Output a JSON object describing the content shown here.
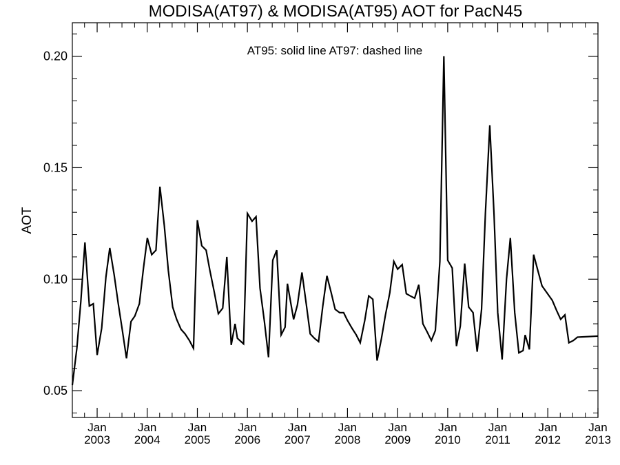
{
  "chart_data": {
    "type": "line",
    "title": "MODISA(AT97) & MODISA(AT95)  AOT for PacN45",
    "annotation": "AT95: solid line   AT97: dashed line",
    "xlabel": "",
    "ylabel": "AOT",
    "xlim": [
      "2002-07-04",
      "2013-01-01"
    ],
    "ylim": [
      0.038,
      0.215
    ],
    "y_ticks": [
      0.05,
      0.1,
      0.15,
      0.2
    ],
    "y_tick_labels": [
      "0.05",
      "0.10",
      "0.15",
      "0.20"
    ],
    "x_ticks": [
      "2003-01-01",
      "2004-01-01",
      "2005-01-01",
      "2006-01-01",
      "2007-01-01",
      "2008-01-01",
      "2009-01-01",
      "2010-01-01",
      "2011-01-01",
      "2012-01-01",
      "2013-01-01"
    ],
    "x_tick_labels": [
      [
        "Jan",
        "2003"
      ],
      [
        "Jan",
        "2004"
      ],
      [
        "Jan",
        "2005"
      ],
      [
        "Jan",
        "2006"
      ],
      [
        "Jan",
        "2007"
      ],
      [
        "Jan",
        "2008"
      ],
      [
        "Jan",
        "2009"
      ],
      [
        "Jan",
        "2010"
      ],
      [
        "Jan",
        "2011"
      ],
      [
        "Jan",
        "2012"
      ],
      [
        "Jan",
        "2013"
      ]
    ],
    "grid": false,
    "line_color": "#000000",
    "series": [
      {
        "line_style": "solid",
        "points": [
          [
            "2002-07-04",
            0.0525
          ],
          [
            "2002-08-06",
            0.069
          ],
          [
            "2002-09-04",
            0.09
          ],
          [
            "2002-10-04",
            0.1165
          ],
          [
            "2002-11-05",
            0.088
          ],
          [
            "2002-12-04",
            0.089
          ],
          [
            "2003-01-01",
            0.066
          ],
          [
            "2003-02-03",
            0.078
          ],
          [
            "2003-03-06",
            0.101
          ],
          [
            "2003-04-03",
            0.114
          ],
          [
            "2003-05-05",
            0.102
          ],
          [
            "2003-06-04",
            0.089
          ],
          [
            "2003-07-04",
            0.077
          ],
          [
            "2003-08-03",
            0.0645
          ],
          [
            "2003-09-05",
            0.081
          ],
          [
            "2003-10-03",
            0.0835
          ],
          [
            "2003-11-05",
            0.089
          ],
          [
            "2003-12-05",
            0.105
          ],
          [
            "2004-01-02",
            0.1185
          ],
          [
            "2004-02-03",
            0.111
          ],
          [
            "2004-03-05",
            0.113
          ],
          [
            "2004-04-03",
            0.1415
          ],
          [
            "2004-05-05",
            0.124
          ],
          [
            "2004-06-03",
            0.104
          ],
          [
            "2004-07-05",
            0.0875
          ],
          [
            "2004-08-03",
            0.082
          ],
          [
            "2004-09-04",
            0.0775
          ],
          [
            "2004-10-03",
            0.0755
          ],
          [
            "2004-11-04",
            0.0725
          ],
          [
            "2004-12-04",
            0.069
          ],
          [
            "2005-01-01",
            0.1265
          ],
          [
            "2005-02-02",
            0.115
          ],
          [
            "2005-03-06",
            0.113
          ],
          [
            "2005-04-02",
            0.104
          ],
          [
            "2005-05-05",
            0.094
          ],
          [
            "2005-06-03",
            0.0845
          ],
          [
            "2005-07-05",
            0.087
          ],
          [
            "2005-08-04",
            0.11
          ],
          [
            "2005-09-05",
            0.0705
          ],
          [
            "2005-10-03",
            0.08
          ],
          [
            "2005-10-20",
            0.0735
          ],
          [
            "2005-12-04",
            0.071
          ],
          [
            "2006-01-01",
            0.1295
          ],
          [
            "2006-02-04",
            0.126
          ],
          [
            "2006-03-05",
            0.128
          ],
          [
            "2006-04-03",
            0.096
          ],
          [
            "2006-05-05",
            0.081
          ],
          [
            "2006-06-04",
            0.065
          ],
          [
            "2006-07-05",
            0.1085
          ],
          [
            "2006-08-03",
            0.113
          ],
          [
            "2006-09-04",
            0.075
          ],
          [
            "2006-10-03",
            0.0785
          ],
          [
            "2006-10-20",
            0.098
          ],
          [
            "2006-12-04",
            0.082
          ],
          [
            "2007-01-01",
            0.0885
          ],
          [
            "2007-02-03",
            0.103
          ],
          [
            "2007-03-06",
            0.089
          ],
          [
            "2007-04-04",
            0.0755
          ],
          [
            "2007-05-05",
            0.0735
          ],
          [
            "2007-06-04",
            0.072
          ],
          [
            "2007-07-05",
            0.088
          ],
          [
            "2007-08-04",
            0.1015
          ],
          [
            "2007-09-04",
            0.094
          ],
          [
            "2007-10-03",
            0.0865
          ],
          [
            "2007-11-05",
            0.085
          ],
          [
            "2007-12-04",
            0.085
          ],
          [
            "2008-01-01",
            0.0815
          ],
          [
            "2008-02-03",
            0.078
          ],
          [
            "2008-03-05",
            0.075
          ],
          [
            "2008-04-03",
            0.0715
          ],
          [
            "2008-05-06",
            0.0815
          ],
          [
            "2008-06-04",
            0.0925
          ],
          [
            "2008-07-04",
            0.091
          ],
          [
            "2008-08-04",
            0.0635
          ],
          [
            "2008-09-05",
            0.0735
          ],
          [
            "2008-10-04",
            0.084
          ],
          [
            "2008-11-05",
            0.094
          ],
          [
            "2008-12-04",
            0.108
          ],
          [
            "2009-01-01",
            0.1045
          ],
          [
            "2009-02-03",
            0.1065
          ],
          [
            "2009-03-05",
            0.0935
          ],
          [
            "2009-04-03",
            0.0925
          ],
          [
            "2009-05-05",
            0.0915
          ],
          [
            "2009-06-04",
            0.0975
          ],
          [
            "2009-07-04",
            0.08
          ],
          [
            "2009-08-03",
            0.0765
          ],
          [
            "2009-09-04",
            0.0725
          ],
          [
            "2009-10-03",
            0.077
          ],
          [
            "2009-11-05",
            0.108
          ],
          [
            "2009-12-04",
            0.2
          ],
          [
            "2010-01-01",
            0.1085
          ],
          [
            "2010-02-03",
            0.105
          ],
          [
            "2010-03-06",
            0.07
          ],
          [
            "2010-04-03",
            0.079
          ],
          [
            "2010-05-05",
            0.107
          ],
          [
            "2010-06-03",
            0.0875
          ],
          [
            "2010-07-05",
            0.085
          ],
          [
            "2010-08-04",
            0.0675
          ],
          [
            "2010-09-05",
            0.0865
          ],
          [
            "2010-10-03",
            0.1295
          ],
          [
            "2010-11-04",
            0.169
          ],
          [
            "2010-12-05",
            0.129
          ],
          [
            "2011-01-01",
            0.085
          ],
          [
            "2011-02-02",
            0.064
          ],
          [
            "2011-03-06",
            0.1
          ],
          [
            "2011-04-03",
            0.1185
          ],
          [
            "2011-05-05",
            0.085
          ],
          [
            "2011-06-04",
            0.067
          ],
          [
            "2011-07-05",
            0.068
          ],
          [
            "2011-07-20",
            0.075
          ],
          [
            "2011-08-20",
            0.0685
          ],
          [
            "2011-09-20",
            0.111
          ],
          [
            "2011-10-20",
            0.104
          ],
          [
            "2011-11-20",
            0.097
          ],
          [
            "2012-02-03",
            0.0905
          ],
          [
            "2012-03-05",
            0.086
          ],
          [
            "2012-04-04",
            0.082
          ],
          [
            "2012-05-05",
            0.084
          ],
          [
            "2012-06-03",
            0.0715
          ],
          [
            "2012-07-05",
            0.0725
          ],
          [
            "2012-08-04",
            0.074
          ],
          [
            "2013-01-01",
            0.0745
          ]
        ]
      }
    ]
  }
}
